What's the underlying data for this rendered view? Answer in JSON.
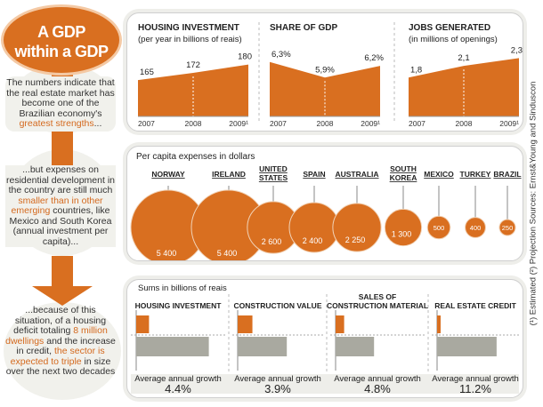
{
  "headline": {
    "line1": "A GDP",
    "line2": "within a GDP"
  },
  "narrative": {
    "p1_a": "The numbers indicate that the real estate market has become one of the Brazilian economy's ",
    "p1_hl": "greatest strengths",
    "p1_b": "...",
    "p2_a": "...but expenses on residential development in the country are still much ",
    "p2_hl": "smaller than in other emerging",
    "p2_b": " countries, like Mexico and South Korea (annual investment per capita)...",
    "p3_a": "...because of this situation, of a housing deficit totaling ",
    "p3_hl1": "8 million dwellings",
    "p3_b": " and the increase in credit, ",
    "p3_hl2": "the sector is expected to triple",
    "p3_c": " in size over the next two decades"
  },
  "side_note": "(¹) Estimated   (²) Projection   Sources: Ernst&Young and Sinduscon",
  "colors": {
    "accent": "#d96f20",
    "grey": "#a9a9a0",
    "panel_fill": "#eeeeea"
  },
  "chart_data": [
    {
      "type": "area",
      "title": "HOUSING INVESTMENT",
      "subtitle": "(per year in billions of reais)",
      "categories": [
        "2007",
        "2008",
        "2009¹"
      ],
      "values": [
        165,
        172,
        180
      ],
      "value_labels": [
        "165",
        "172",
        "180"
      ],
      "ylim": [
        130,
        190
      ]
    },
    {
      "type": "area",
      "title": "SHARE OF GDP",
      "categories": [
        "2007",
        "2008",
        "2009¹"
      ],
      "values": [
        6.3,
        5.9,
        6.2
      ],
      "value_labels": [
        "6,3%",
        "5,9%",
        "6,2%"
      ],
      "ylim": [
        4.9,
        6.5
      ]
    },
    {
      "type": "area",
      "title": "JOBS GENERATED",
      "subtitle": "(in millions of openings)",
      "categories": [
        "2007",
        "2008",
        "2009¹"
      ],
      "values": [
        1.8,
        2.1,
        2.3
      ],
      "value_labels": [
        "1,8",
        "2,1",
        "2,3"
      ],
      "ylim": [
        0.8,
        2.4
      ]
    },
    {
      "type": "scatter",
      "title": "Per capita expenses in dollars",
      "categories": [
        "NORWAY",
        "IRELAND",
        "UNITED STATES",
        "SPAIN",
        "AUSTRALIA",
        "SOUTH KOREA",
        "MEXICO",
        "TURKEY",
        "BRAZIL"
      ],
      "values": [
        5400,
        5400,
        2600,
        2400,
        2250,
        1300,
        500,
        400,
        250
      ],
      "value_labels": [
        "5 400",
        "5 400",
        "2 600",
        "2 400",
        "2 250",
        "1 300",
        "500",
        "400",
        "250"
      ]
    },
    {
      "type": "bar",
      "title": "Sums in billions of reais",
      "categories": [
        "HOUSING INVESTMENT",
        "CONSTRUCTION VALUE",
        "SALES OF CONSTRUCTION MATERIAL",
        "REAL ESTATE CREDIT"
      ],
      "growth_label": "Average annual growth",
      "growth_values": [
        4.4,
        3.9,
        4.8,
        11.2
      ],
      "growth_labels": [
        "4.4%",
        "3.9%",
        "4.8%",
        "11.2%"
      ],
      "bar_ratios": [
        {
          "current": 0.15,
          "projected": 0.85
        },
        {
          "current": 0.18,
          "projected": 0.6
        },
        {
          "current": 0.1,
          "projected": 0.45
        },
        {
          "current": 0.04,
          "projected": 0.76
        }
      ]
    }
  ]
}
